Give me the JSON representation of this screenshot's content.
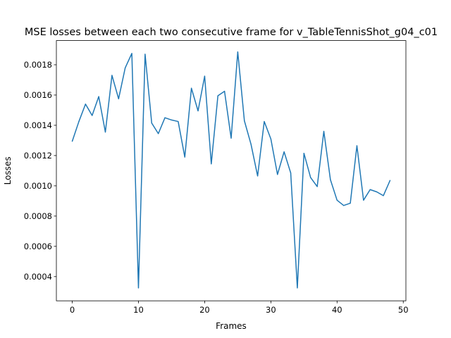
{
  "chart_data": {
    "type": "line",
    "title": "MSE losses between each two consecutive frame for v_TableTennisShot_g04_c01",
    "xlabel": "Frames",
    "ylabel": "Losses",
    "xlim": [
      -2.4,
      50.4
    ],
    "ylim": [
      0.00024,
      0.00196
    ],
    "xticks": [
      0,
      10,
      20,
      30,
      40,
      50
    ],
    "yticks": [
      0.0004,
      0.0006,
      0.0008,
      0.001,
      0.0012,
      0.0014,
      0.0016,
      0.0018
    ],
    "ytick_labels": [
      "0.0004",
      "0.0006",
      "0.0008",
      "0.0010",
      "0.0012",
      "0.0014",
      "0.0016",
      "0.0018"
    ],
    "grid": false,
    "series": [
      {
        "color": "#1f77b4",
        "x": [
          0,
          1,
          2,
          3,
          4,
          5,
          6,
          7,
          8,
          9,
          10,
          11,
          12,
          13,
          14,
          15,
          16,
          17,
          18,
          19,
          20,
          21,
          22,
          23,
          24,
          25,
          26,
          27,
          28,
          29,
          30,
          31,
          32,
          33,
          34,
          35,
          36,
          37,
          38,
          39,
          40,
          41,
          42,
          43,
          44,
          45,
          46,
          47,
          48
        ],
        "values": [
          0.001295,
          0.001425,
          0.00154,
          0.001465,
          0.00159,
          0.001355,
          0.00173,
          0.001575,
          0.00178,
          0.001875,
          0.000325,
          0.00187,
          0.001415,
          0.001345,
          0.00145,
          0.001435,
          0.001425,
          0.00119,
          0.001645,
          0.001495,
          0.001725,
          0.001145,
          0.001595,
          0.001625,
          0.001315,
          0.001885,
          0.00143,
          0.001275,
          0.001065,
          0.001425,
          0.00131,
          0.001075,
          0.001225,
          0.001085,
          0.000325,
          0.001215,
          0.001055,
          0.000995,
          0.00136,
          0.00104,
          0.000905,
          0.00087,
          0.000885,
          0.001265,
          0.000905,
          0.000975,
          0.00096,
          0.000935,
          0.001035
        ]
      }
    ]
  }
}
